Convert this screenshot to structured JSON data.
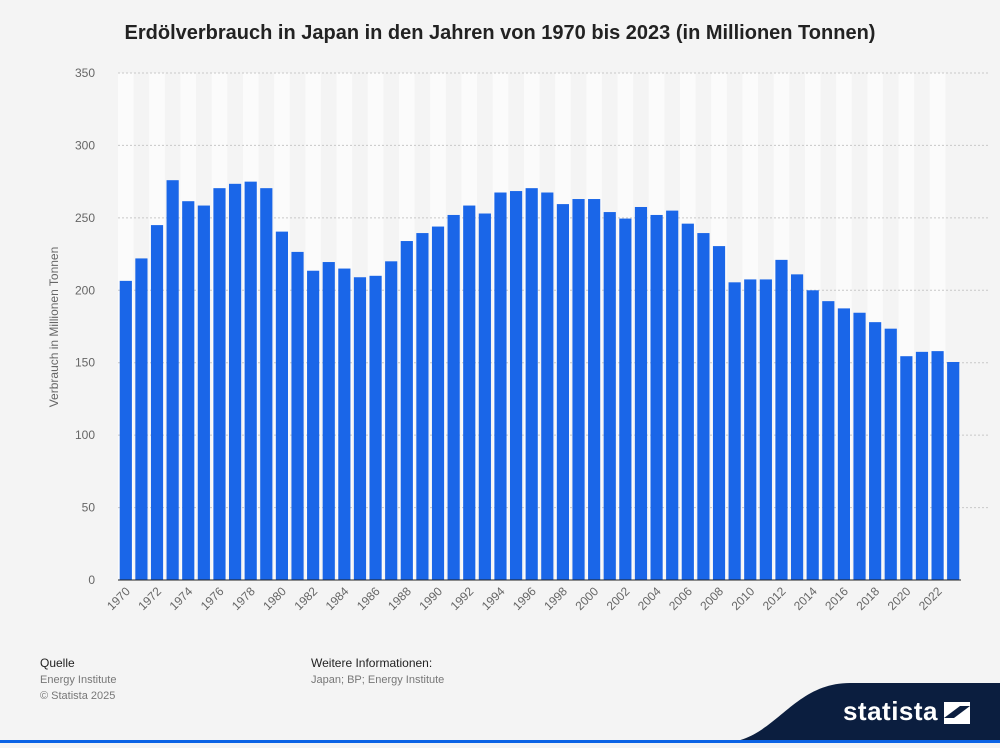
{
  "chart_data": {
    "type": "bar",
    "title": "Erdölverbrauch in Japan in den Jahren von 1970 bis 2023 (in Millionen Tonnen)",
    "xlabel": "",
    "ylabel": "Verbrauch in Millionen Tonnen",
    "ylim": [
      0,
      350
    ],
    "yticks": [
      0,
      50,
      100,
      150,
      200,
      250,
      300,
      350
    ],
    "grid": true,
    "bar_color": "#1a66e8",
    "categories": [
      "1970",
      "1971",
      "1972",
      "1973",
      "1974",
      "1975",
      "1976",
      "1977",
      "1978",
      "1979",
      "1980",
      "1981",
      "1982",
      "1983",
      "1984",
      "1985",
      "1986",
      "1987",
      "1988",
      "1989",
      "1990",
      "1991",
      "1992",
      "1993",
      "1994",
      "1995",
      "1996",
      "1997",
      "1998",
      "1999",
      "2000",
      "2001",
      "2002",
      "2003",
      "2004",
      "2005",
      "2006",
      "2007",
      "2008",
      "2009",
      "2010",
      "2011",
      "2012",
      "2013",
      "2014",
      "2015",
      "2016",
      "2017",
      "2018",
      "2019",
      "2020",
      "2021",
      "2022",
      "2023"
    ],
    "x_tick_labels": [
      "1970",
      "1972",
      "1974",
      "1976",
      "1978",
      "1980",
      "1982",
      "1984",
      "1986",
      "1988",
      "1990",
      "1992",
      "1994",
      "1996",
      "1998",
      "2000",
      "2002",
      "2004",
      "2006",
      "2008",
      "2010",
      "2012",
      "2014",
      "2016",
      "2018",
      "2020",
      "2022"
    ],
    "values": [
      206.5,
      222,
      245,
      276,
      261.5,
      258.5,
      270.5,
      273.5,
      275,
      270.5,
      240.5,
      226.5,
      213.5,
      219.5,
      215,
      209,
      210,
      220,
      234,
      239.5,
      244,
      252,
      258.5,
      253,
      267.5,
      268.5,
      270.5,
      267.5,
      259.5,
      263,
      263,
      254,
      249.5,
      257.5,
      252,
      255,
      246,
      239.5,
      230.5,
      205.5,
      207.5,
      207.5,
      221,
      211,
      200,
      192.5,
      187.5,
      184.5,
      178,
      173.5,
      154.5,
      157.5,
      158,
      150.5
    ]
  },
  "footer": {
    "source_label": "Quelle",
    "source_lines": [
      "Energy Institute",
      "© Statista 2025"
    ],
    "info_label": "Weitere Informationen:",
    "info_text": "Japan; BP; Energy Institute"
  },
  "brand": {
    "name": "statista",
    "color": "#0b1e3f"
  }
}
